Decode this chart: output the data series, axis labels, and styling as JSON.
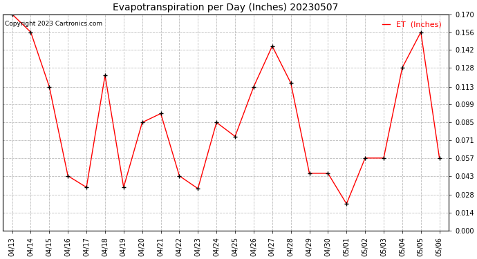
{
  "title": "Evapotranspiration per Day (Inches) 20230507",
  "copyright": "Copyright 2023 Cartronics.com",
  "legend_label": "ET  (Inches)",
  "dates": [
    "04/13",
    "04/14",
    "04/15",
    "04/16",
    "04/17",
    "04/18",
    "04/19",
    "04/20",
    "04/21",
    "04/22",
    "04/23",
    "04/24",
    "04/25",
    "04/26",
    "04/27",
    "04/28",
    "04/29",
    "04/30",
    "05/01",
    "05/02",
    "05/03",
    "05/04",
    "05/05",
    "05/06"
  ],
  "values": [
    0.17,
    0.156,
    0.113,
    0.043,
    0.034,
    0.122,
    0.034,
    0.085,
    0.092,
    0.043,
    0.033,
    0.085,
    0.074,
    0.113,
    0.145,
    0.116,
    0.045,
    0.045,
    0.021,
    0.057,
    0.057,
    0.128,
    0.156,
    0.057
  ],
  "line_color": "red",
  "marker_color": "black",
  "background_color": "#ffffff",
  "grid_color": "#bbbbbb",
  "ylim_min": 0.0,
  "ylim_max": 0.17,
  "yticks": [
    0.0,
    0.014,
    0.028,
    0.043,
    0.057,
    0.071,
    0.085,
    0.099,
    0.113,
    0.128,
    0.142,
    0.156,
    0.17
  ],
  "title_fontsize": 10,
  "legend_fontsize": 8,
  "tick_fontsize": 7,
  "copyright_fontsize": 6.5
}
